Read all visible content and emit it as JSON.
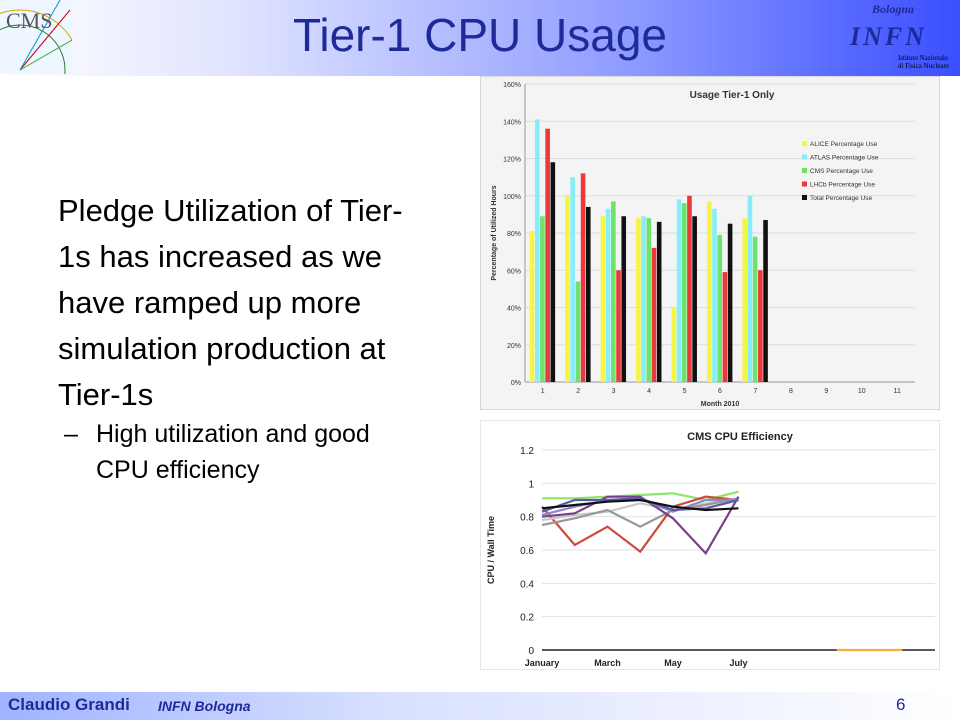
{
  "slide": {
    "title": "Tier-1 CPU Usage",
    "logo_left_text": "CMS",
    "logo_right": {
      "city": "Bologna",
      "name": "INFN",
      "sub1": "Istituto Nazionale",
      "sub2": "di Fisica Nucleare"
    },
    "bullet_text_1": "Pledge Utilization of",
    "bullet_text_rest": "Tier-1s has increased as we have ramped up more simulation production at Tier-1s",
    "sub_dash": "–",
    "sub_bullet": "High utilization and good CPU efficiency",
    "footer_author": "Claudio Grandi",
    "footer_affiliation": "INFN Bologna",
    "page_number": "6"
  },
  "chart_data": [
    {
      "type": "bar",
      "title": "Usage Tier-1 Only",
      "xlabel": "Month 2010",
      "ylabel": "Percentage of Utilized Hours",
      "categories": [
        "1",
        "2",
        "3",
        "4",
        "5",
        "6",
        "7",
        "8",
        "9",
        "10",
        "11"
      ],
      "ylim": [
        0,
        160
      ],
      "yticks": [
        "0%",
        "20%",
        "40%",
        "60%",
        "80%",
        "100%",
        "120%",
        "140%",
        "160%"
      ],
      "legend_position": "right",
      "series": [
        {
          "name": "ALICE Percentage Use",
          "color": "#f5f543",
          "values": [
            81,
            100,
            89,
            88,
            40,
            97,
            88,
            null,
            null,
            null,
            null
          ]
        },
        {
          "name": "ATLAS Percentage Use",
          "color": "#86eefb",
          "values": [
            141,
            110,
            93,
            89,
            98,
            93,
            100,
            null,
            null,
            null,
            null
          ]
        },
        {
          "name": "CMS Percentage Use",
          "color": "#6ee36b",
          "values": [
            89,
            54,
            97,
            88,
            96,
            79,
            78,
            null,
            null,
            null,
            null
          ]
        },
        {
          "name": "LHCb Percentage Use",
          "color": "#e83a3a",
          "values": [
            136,
            112,
            60,
            72,
            100,
            59,
            60,
            null,
            null,
            null,
            null
          ]
        },
        {
          "name": "Total Percentage Use",
          "color": "#111111",
          "values": [
            118,
            94,
            89,
            86,
            89,
            85,
            87,
            null,
            null,
            null,
            null
          ]
        }
      ]
    },
    {
      "type": "line",
      "title": "CMS CPU Efficiency",
      "ylabel": "CPU / Wall Time",
      "x_tick_labels": [
        "January",
        "March",
        "May",
        "July"
      ],
      "ylim": [
        0,
        1.2
      ],
      "yticks": [
        "0",
        "0.2",
        "0.4",
        "0.6",
        "0.8",
        "1",
        "1.2"
      ],
      "series": [
        {
          "color": "#8fe36b",
          "values": [
            0.91,
            0.91,
            0.92,
            0.93,
            0.94,
            0.9,
            0.95
          ]
        },
        {
          "color": "#d04a3a",
          "values": [
            0.86,
            0.63,
            0.74,
            0.59,
            0.86,
            0.92,
            0.9
          ]
        },
        {
          "color": "#c9c9c9",
          "values": [
            0.78,
            0.81,
            0.83,
            0.88,
            0.84,
            0.88,
            0.91
          ]
        },
        {
          "color": "#999999",
          "values": [
            0.75,
            0.79,
            0.84,
            0.74,
            0.84,
            0.87,
            0.91
          ]
        },
        {
          "color": "#7a3f8a",
          "values": [
            0.8,
            0.82,
            0.92,
            0.92,
            0.79,
            0.58,
            0.92
          ]
        },
        {
          "color": "#8a8acb",
          "values": [
            0.81,
            0.86,
            0.9,
            0.91,
            0.83,
            0.9,
            0.9
          ]
        },
        {
          "color": "#5a5aaa",
          "values": [
            0.83,
            0.9,
            0.9,
            0.91,
            0.84,
            0.85,
            0.9
          ]
        },
        {
          "color": "#111111",
          "values": [
            0.85,
            0.87,
            0.89,
            0.9,
            0.86,
            0.84,
            0.85
          ]
        },
        {
          "color": "#f5b041",
          "values": [
            null,
            null,
            null,
            null,
            null,
            null,
            null,
            null,
            null,
            0,
            0,
            0
          ]
        }
      ]
    }
  ]
}
